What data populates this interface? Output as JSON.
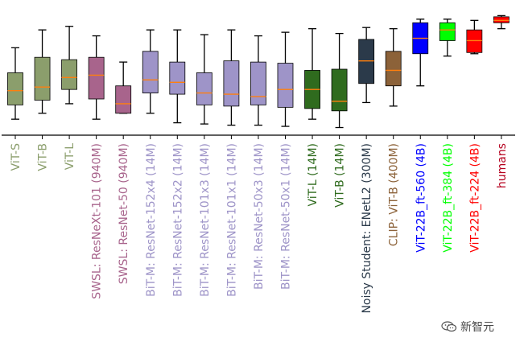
{
  "chart_data": {
    "type": "box",
    "title": "",
    "xlabel": "",
    "ylabel": "",
    "ylim": [
      0,
      1
    ],
    "y_axis_visible": false,
    "grid": false,
    "median_color": "#ff7f0e",
    "categories": [
      {
        "label": "ViT-S",
        "color": "#8b9e6c",
        "stats": {
          "whislo": 0.08,
          "q1": 0.2,
          "med": 0.32,
          "q3": 0.47,
          "whishi": 0.68
        }
      },
      {
        "label": "ViT-B",
        "color": "#8b9e6c",
        "stats": {
          "whislo": 0.13,
          "q1": 0.24,
          "med": 0.35,
          "q3": 0.6,
          "whishi": 0.83
        }
      },
      {
        "label": "ViT-L",
        "color": "#8b9e6c",
        "stats": {
          "whislo": 0.21,
          "q1": 0.33,
          "med": 0.43,
          "q3": 0.58,
          "whishi": 0.86
        }
      },
      {
        "label": "SWSL: ResNeXt-101 (940M)",
        "color": "#a8648c",
        "stats": {
          "whislo": 0.08,
          "q1": 0.25,
          "med": 0.45,
          "q3": 0.6,
          "whishi": 0.78
        }
      },
      {
        "label": "SWSL: ResNet-50 (940M)",
        "color": "#a8648c",
        "stats": {
          "whislo": 0.13,
          "q1": 0.13,
          "med": 0.21,
          "q3": 0.36,
          "whishi": 0.56
        }
      },
      {
        "label": "BiT-M: ResNet-152x4 (14M)",
        "color": "#9e94c8",
        "stats": {
          "whislo": 0.13,
          "q1": 0.3,
          "med": 0.41,
          "q3": 0.65,
          "whishi": 0.83
        }
      },
      {
        "label": "BiT-M: ResNet-152x2 (14M)",
        "color": "#9e94c8",
        "stats": {
          "whislo": 0.05,
          "q1": 0.29,
          "med": 0.39,
          "q3": 0.56,
          "whishi": 0.83
        }
      },
      {
        "label": "BiT-M: ResNet-101x3 (14M)",
        "color": "#9e94c8",
        "stats": {
          "whislo": 0.04,
          "q1": 0.2,
          "med": 0.3,
          "q3": 0.47,
          "whishi": 0.79
        }
      },
      {
        "label": "BiT-M: ResNet-101x1 (14M)",
        "color": "#9e94c8",
        "stats": {
          "whislo": 0.03,
          "q1": 0.19,
          "med": 0.29,
          "q3": 0.57,
          "whishi": 0.83
        }
      },
      {
        "label": "BiT-M: ResNet-50x3 (14M)",
        "color": "#9e94c8",
        "stats": {
          "whislo": 0.03,
          "q1": 0.2,
          "med": 0.27,
          "q3": 0.56,
          "whishi": 0.78
        }
      },
      {
        "label": "BiT-M: ResNet-50x1 (14M)",
        "color": "#9e94c8",
        "stats": {
          "whislo": 0.02,
          "q1": 0.18,
          "med": 0.33,
          "q3": 0.55,
          "whishi": 0.81
        }
      },
      {
        "label": "ViT-L (14M)",
        "color": "#2f6b1e",
        "stats": {
          "whislo": 0.08,
          "q1": 0.17,
          "med": 0.33,
          "q3": 0.49,
          "whishi": 0.84
        }
      },
      {
        "label": "ViT-B (14M)",
        "color": "#2f6b1e",
        "stats": {
          "whislo": 0.01,
          "q1": 0.15,
          "med": 0.23,
          "q3": 0.5,
          "whishi": 0.8
        }
      },
      {
        "label": "Noisy Student: ENetL2 (300M)",
        "color": "#2b3a4a",
        "stats": {
          "whislo": 0.22,
          "q1": 0.38,
          "med": 0.57,
          "q3": 0.75,
          "whishi": 0.85
        }
      },
      {
        "label": "CLIP: ViT-B (400M)",
        "color": "#8c6239",
        "stats": {
          "whislo": 0.19,
          "q1": 0.36,
          "med": 0.49,
          "q3": 0.65,
          "whishi": 0.84
        }
      },
      {
        "label": "ViT-22B_ft-560 (4B)",
        "color": "#0000ff",
        "stats": {
          "whislo": 0.36,
          "q1": 0.63,
          "med": 0.76,
          "q3": 0.89,
          "whishi": 0.92
        }
      },
      {
        "label": "ViT-22B_ft-384 (4B)",
        "color": "#00ff00",
        "stats": {
          "whislo": 0.61,
          "q1": 0.74,
          "med": 0.83,
          "q3": 0.89,
          "whishi": 0.92
        }
      },
      {
        "label": "ViT-22B_ft-224 (4B)",
        "color": "#ff0000",
        "stats": {
          "whislo": 0.63,
          "q1": 0.64,
          "med": 0.74,
          "q3": 0.83,
          "whishi": 0.91
        }
      },
      {
        "label": "humans",
        "color": "#ff0000",
        "label_color": "#b5001e",
        "stats": {
          "whislo": 0.84,
          "q1": 0.89,
          "med": 0.91,
          "q3": 0.94,
          "whishi": 0.95
        }
      }
    ]
  },
  "watermark": {
    "text": "新智元",
    "icon": "wechat-icon"
  }
}
